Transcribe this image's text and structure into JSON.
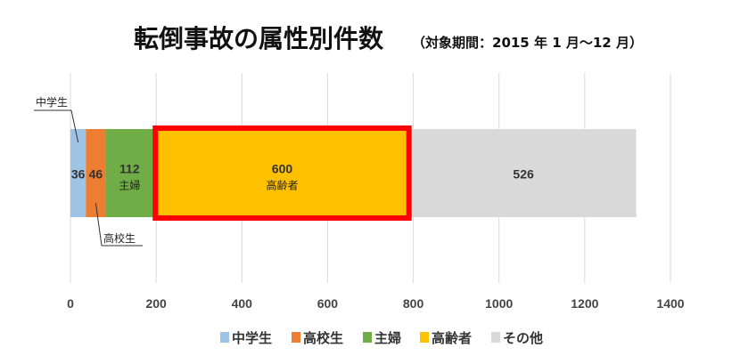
{
  "chart_data": {
    "type": "bar",
    "orientation": "horizontal-stacked",
    "title": "転倒事故の属性別件数",
    "subtitle": "（対象期間：2015 年 1 月〜12 月）",
    "series": [
      {
        "name": "中学生",
        "value": 36,
        "color": "#9DC3E6"
      },
      {
        "name": "高校生",
        "value": 46,
        "color": "#ED7D31"
      },
      {
        "name": "主婦",
        "value": 112,
        "color": "#70AD47",
        "label": "主婦"
      },
      {
        "name": "高齢者",
        "value": 600,
        "color": "#FFC000",
        "label": "高齢者",
        "highlight": true
      },
      {
        "name": "その他",
        "value": 526,
        "color": "#D9D9D9"
      }
    ],
    "xlim": [
      0,
      1400
    ],
    "ticks": [
      "0",
      "200",
      "400",
      "600",
      "800",
      "1000",
      "1200",
      "1400"
    ],
    "tick_values": [
      0,
      200,
      400,
      600,
      800,
      1000,
      1200,
      1400
    ],
    "callouts": [
      {
        "series": "中学生",
        "text": "中学生",
        "position": "above"
      },
      {
        "series": "高校生",
        "text": "高校生",
        "position": "below"
      }
    ],
    "highlight_color": "#FF0000",
    "grid": true,
    "legend_position": "bottom"
  }
}
